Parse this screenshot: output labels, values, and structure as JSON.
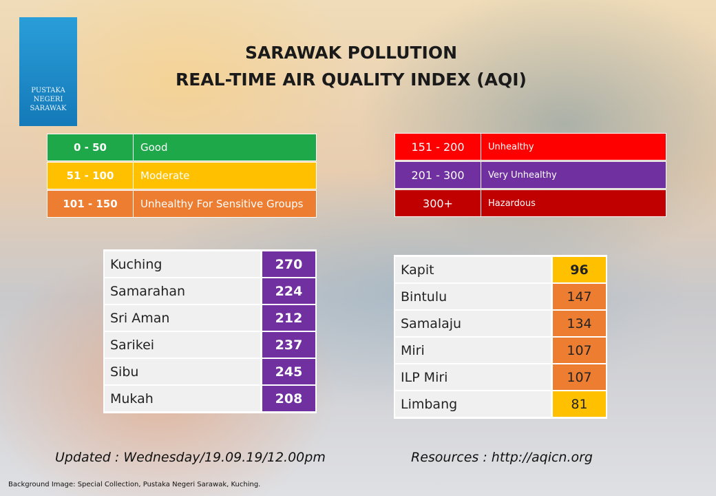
{
  "logo": {
    "lines": [
      "PUSTAKA",
      "NEGERI",
      "SARAWAK"
    ]
  },
  "header": {
    "title_lines": [
      "SARAWAK POLLUTION",
      "REAL-TIME AIR QUALITY INDEX (AQI)"
    ]
  },
  "legend_left": {
    "rows": [
      {
        "range": "0 - 50",
        "label": "Good",
        "color": "#1fa84a"
      },
      {
        "range": "51 - 100",
        "label": "Moderate",
        "color": "#ffc000"
      },
      {
        "range": "101 - 150",
        "label": "Unhealthy For Sensitive Groups",
        "color": "#ed7d31"
      }
    ]
  },
  "legend_right": {
    "rows": [
      {
        "range": "151 - 200",
        "label": "Unhealthy",
        "color": "#ff0000"
      },
      {
        "range": "201 - 300",
        "label": "Very Unhealthy",
        "color": "#7030a0"
      },
      {
        "range": "300+",
        "label": "Hazardous",
        "color": "#c00000"
      }
    ]
  },
  "table_left": {
    "rows": [
      {
        "city": "Kuching",
        "aqi": 270,
        "color": "#7030a0"
      },
      {
        "city": "Samarahan",
        "aqi": 224,
        "color": "#7030a0"
      },
      {
        "city": "Sri Aman",
        "aqi": 212,
        "color": "#7030a0"
      },
      {
        "city": "Sarikei",
        "aqi": 237,
        "color": "#7030a0"
      },
      {
        "city": "Sibu",
        "aqi": 245,
        "color": "#7030a0"
      },
      {
        "city": "Mukah",
        "aqi": 208,
        "color": "#7030a0"
      }
    ]
  },
  "table_right": {
    "rows": [
      {
        "city": "Kapit",
        "aqi": 96,
        "color": "#ffc000"
      },
      {
        "city": "Bintulu",
        "aqi": 147,
        "color": "#ed7d31"
      },
      {
        "city": "Samalaju",
        "aqi": 134,
        "color": "#ed7d31"
      },
      {
        "city": "Miri",
        "aqi": 107,
        "color": "#ed7d31"
      },
      {
        "city": "ILP Miri",
        "aqi": 107,
        "color": "#ed7d31"
      },
      {
        "city": "Limbang",
        "aqi": 81,
        "color": "#ffc000"
      }
    ]
  },
  "footer": {
    "updated": "Updated : Wednesday/19.09.19/12.00pm",
    "resources": "Resources : http://aqicn.org",
    "credit": "Background Image: Special Collection, Pustaka Negeri Sarawak, Kuching."
  }
}
